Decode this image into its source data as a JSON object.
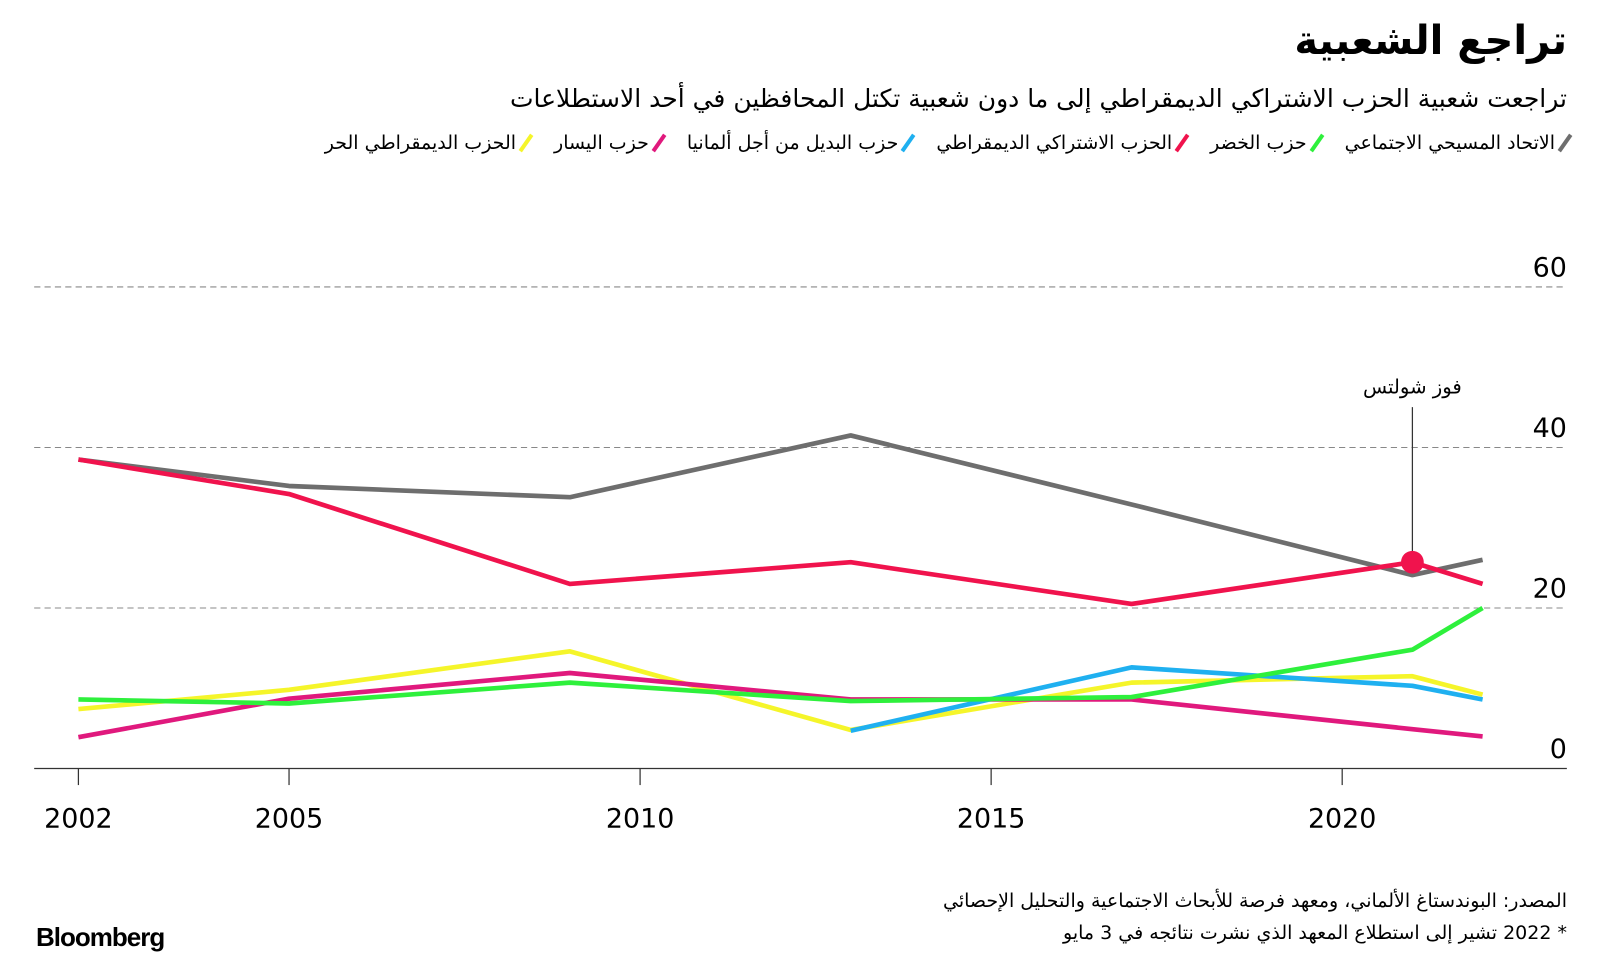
{
  "chart_data": {
    "type": "line",
    "title": "تراجع الشعبية",
    "subtitle": "تراجعت شعبية الحزب الاشتراكي الديمقراطي إلى ما دون شعبية تكتل المحافظين في أحد الاستطلاعات",
    "x": [
      2002,
      2005,
      2009,
      2013,
      2017,
      2021,
      2022
    ],
    "series": [
      {
        "name": "الاتحاد المسيحي الاجتماعي",
        "color": "#6e6e6e",
        "values": [
          38.5,
          35.2,
          33.8,
          41.5,
          32.9,
          24.1,
          26
        ]
      },
      {
        "name": "حزب الخضر",
        "color": "#2ef03c",
        "values": [
          8.6,
          8.1,
          10.7,
          8.4,
          8.9,
          14.8,
          20
        ]
      },
      {
        "name": "الحزب الاشتراكي الديمقراطي",
        "color": "#f0134d",
        "values": [
          38.5,
          34.2,
          23,
          25.7,
          20.5,
          25.7,
          23
        ]
      },
      {
        "name": "حزب البديل من أجل ألمانيا",
        "color": "#1fb0f0",
        "values": [
          null,
          null,
          null,
          4.7,
          12.6,
          10.3,
          8.6
        ]
      },
      {
        "name": "حزب اليسار",
        "color": "#e0197d",
        "values": [
          3.9,
          8.7,
          11.9,
          8.6,
          8.6,
          4.9,
          4
        ]
      },
      {
        "name": "الحزب الديمقراطي الحر",
        "color": "#f5f52a",
        "values": [
          7.4,
          9.8,
          14.6,
          4.8,
          10.7,
          11.5,
          9.2
        ]
      }
    ],
    "annotation": {
      "text": "فوز شولتس",
      "x": 2021
    },
    "xlim": [
      2001.37,
      2023.2
    ],
    "xticks": [
      2002,
      2005,
      2010,
      2015,
      2020
    ],
    "ylim": [
      0,
      60
    ],
    "yticks": [
      0,
      20,
      40,
      60
    ],
    "grid": true,
    "source": "المصدر: البوندستاغ الألماني، ومعهد فرصة للأبحاث الاجتماعية والتحليل الإحصائي",
    "note": "* 2022 تشير إلى استطلاع المعهد الذي نشرت نتائجه في 3 مايو",
    "brand": "Bloomberg"
  }
}
